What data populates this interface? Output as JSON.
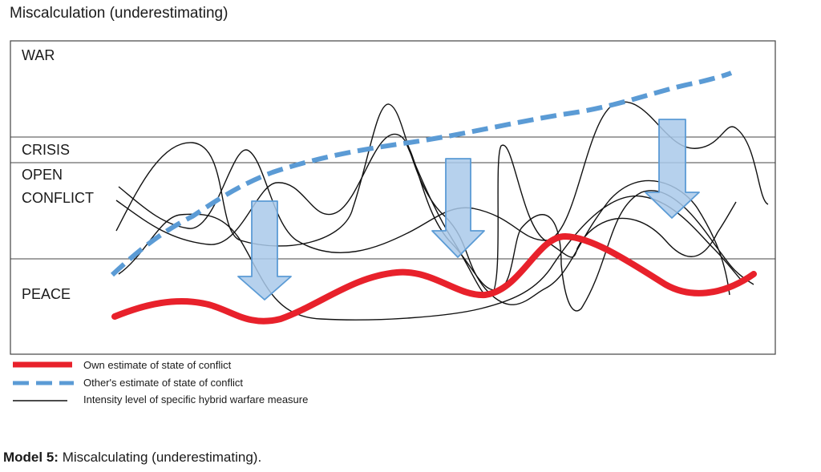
{
  "title": "Miscalculation (underestimating)",
  "bands": {
    "war": "WAR",
    "crisis": "CRISIS",
    "open_conflict_line1": "OPEN",
    "open_conflict_line2": "CONFLICT",
    "peace": "PEACE"
  },
  "legend": {
    "own": "Own estimate of state of conflict",
    "other": "Other's estimate of state of conflict",
    "intensity": "Intensity level of specific hybrid warfare measure"
  },
  "caption": {
    "label": "Model 5:",
    "text": "Miscalculating (underestimating)."
  },
  "colors": {
    "own_estimate": "#e8212b",
    "other_estimate": "#5b9bd5",
    "intensity": "#111111",
    "arrow_fill": "#a9c9ea",
    "arrow_stroke": "#5b9bd5"
  }
}
